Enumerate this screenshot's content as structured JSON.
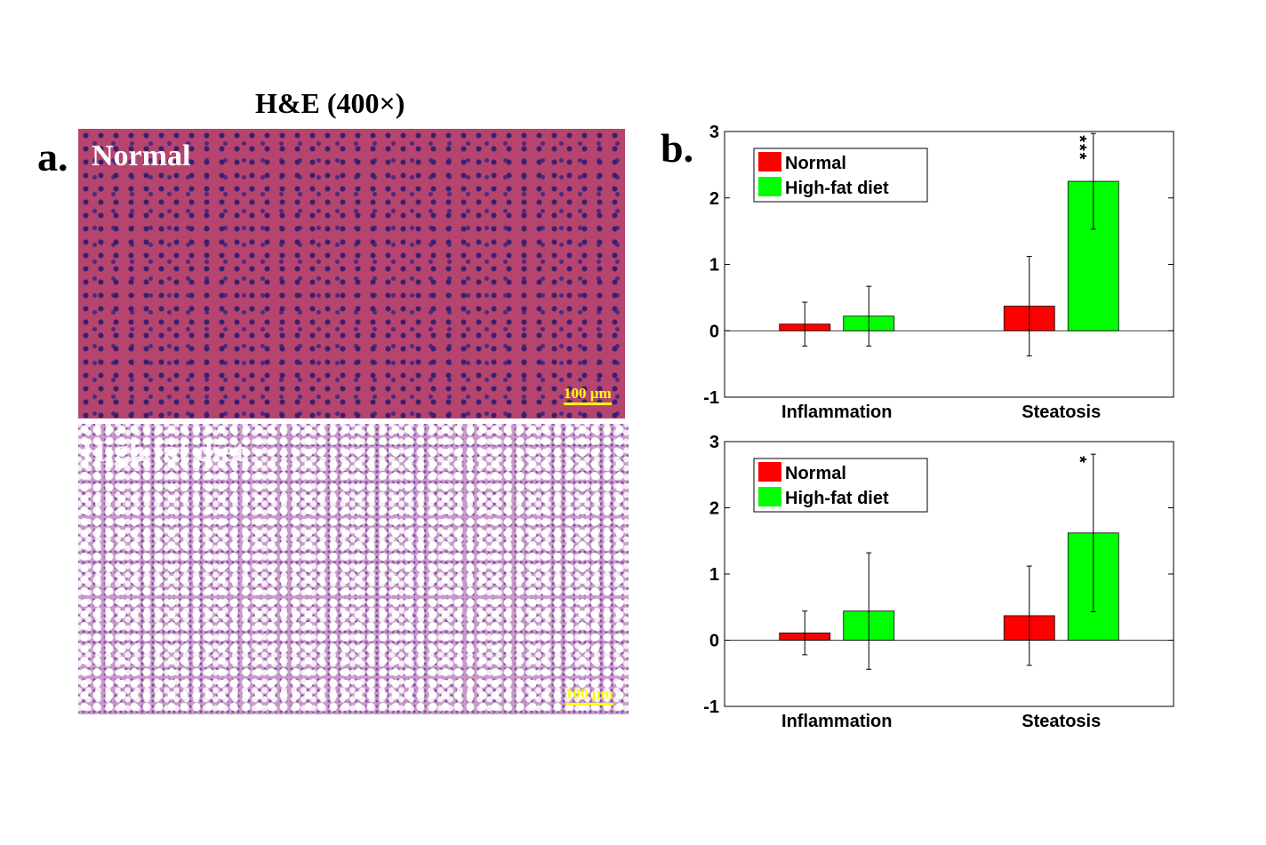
{
  "panel_a": {
    "title": "H&E (400×)",
    "label": "a.",
    "top_caption": "Normal",
    "bottom_caption": "High fat diet",
    "top_scale": "100 µm",
    "bottom_scale": "100 µm"
  },
  "panel_b_label": "b.",
  "chart_data": [
    {
      "type": "bar",
      "categories": [
        "Inflammation",
        "Steatosis"
      ],
      "series": [
        {
          "name": "Normal",
          "color": "#ff0000",
          "values": [
            0.1,
            0.37
          ],
          "errors": [
            0.33,
            0.75
          ]
        },
        {
          "name": "High-fat diet",
          "color": "#00ff00",
          "values": [
            0.22,
            2.25
          ],
          "errors": [
            0.45,
            0.72
          ],
          "significance": [
            null,
            "***"
          ]
        }
      ],
      "ylim": [
        -1,
        3
      ],
      "yticks": [
        -1,
        0,
        1,
        2,
        3
      ],
      "legend": "upper left"
    },
    {
      "type": "bar",
      "categories": [
        "Inflammation",
        "Steatosis"
      ],
      "series": [
        {
          "name": "Normal",
          "color": "#ff0000",
          "values": [
            0.11,
            0.37
          ],
          "errors": [
            0.33,
            0.75
          ]
        },
        {
          "name": "High-fat diet",
          "color": "#00ff00",
          "values": [
            0.44,
            1.62
          ],
          "errors": [
            0.88,
            1.19
          ],
          "significance": [
            null,
            "*"
          ]
        }
      ],
      "ylim": [
        -1,
        3
      ],
      "yticks": [
        -1,
        0,
        1,
        2,
        3
      ],
      "legend": "upper left"
    }
  ]
}
